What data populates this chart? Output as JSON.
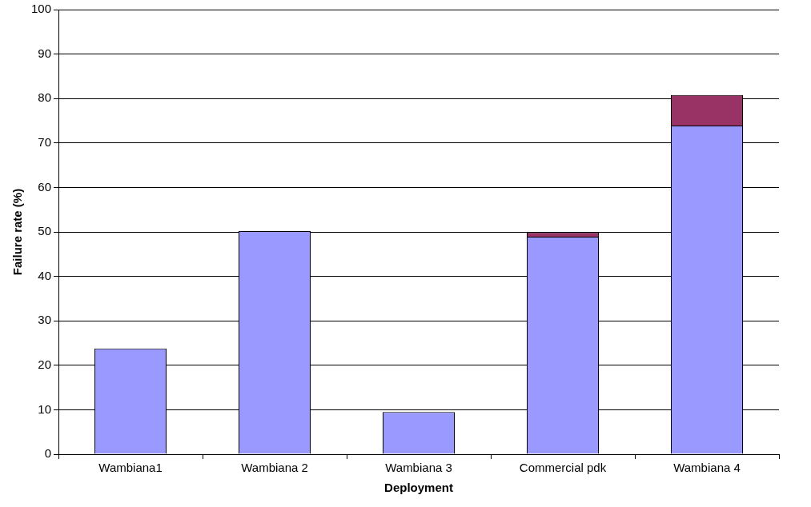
{
  "chart_data": {
    "type": "bar",
    "stacked": true,
    "xlabel": "Deployment",
    "ylabel": "Failure rate (%)",
    "categories": [
      "Wambiana1",
      "Wambiana 2",
      "Wambiana 3",
      "Commercial pdk",
      "Wambiana 4"
    ],
    "series": [
      {
        "color": "#9999ff",
        "values": [
          23.8,
          50.2,
          9.5,
          48.9,
          73.9
        ]
      },
      {
        "color": "#993366",
        "values": [
          null,
          null,
          null,
          1,
          6.9
        ]
      }
    ],
    "ylim": [
      0,
      100
    ],
    "yticks": [
      0,
      10,
      20,
      30,
      40,
      50,
      60,
      70,
      80,
      90,
      100
    ],
    "grid": "y",
    "legend": false
  }
}
